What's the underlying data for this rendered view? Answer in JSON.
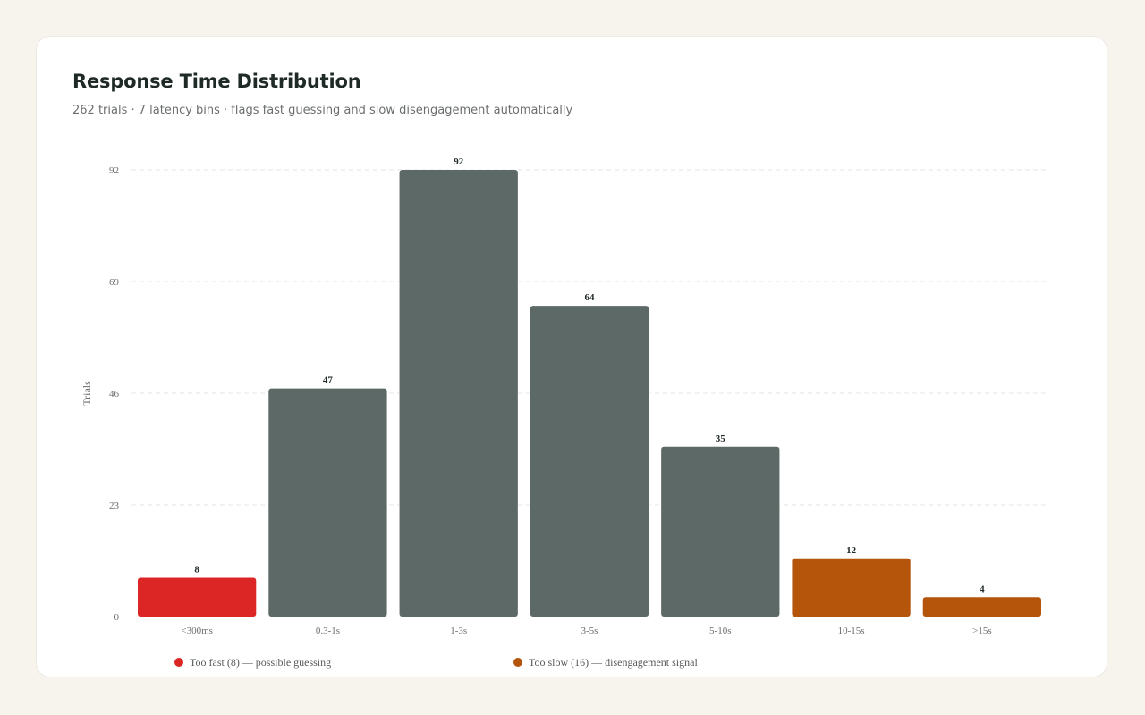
{
  "header": {
    "title": "Response Time Distribution",
    "subtitle": "262 trials · 7 latency bins · flags fast guessing and slow disengagement automatically"
  },
  "colors": {
    "normal": "#5c6966",
    "fast": "#dc2626",
    "slow": "#b5540b",
    "grid": "#e6e6e6"
  },
  "legend": [
    {
      "key": "fast",
      "label": "Too fast (8) — possible guessing"
    },
    {
      "key": "slow",
      "label": "Too slow (16) — disengagement signal"
    }
  ],
  "chart_data": {
    "type": "bar",
    "title": "Response Time Distribution",
    "xlabel": "",
    "ylabel": "Trials",
    "categories": [
      "<300ms",
      "0.3-1s",
      "1-3s",
      "3-5s",
      "5-10s",
      "10-15s",
      ">15s"
    ],
    "values": [
      8,
      47,
      92,
      64,
      35,
      12,
      4
    ],
    "flags": [
      "fast",
      "normal",
      "normal",
      "normal",
      "normal",
      "slow",
      "slow"
    ],
    "yticks": [
      0,
      23,
      46,
      69,
      92
    ],
    "ylim": [
      0,
      92
    ],
    "grid": true,
    "legend_position": "bottom-left"
  }
}
